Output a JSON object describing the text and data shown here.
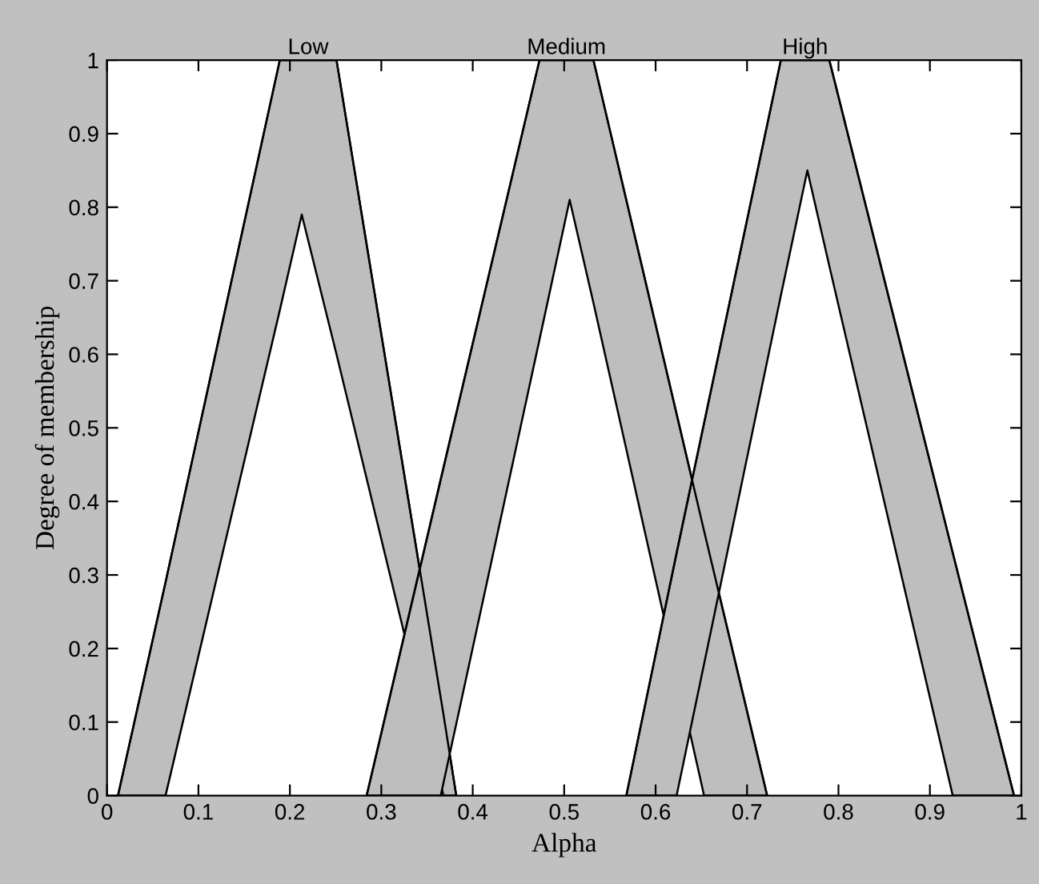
{
  "chart_data": {
    "type": "line",
    "marker": "none",
    "xlabel": "Alpha",
    "ylabel": "Degree of membership",
    "xlim": [
      0,
      1
    ],
    "ylim": [
      0,
      1
    ],
    "xticks": [
      0,
      0.1,
      0.2,
      0.3,
      0.4,
      0.5,
      0.6,
      0.7,
      0.8,
      0.9,
      1
    ],
    "yticks": [
      0,
      0.1,
      0.2,
      0.3,
      0.4,
      0.5,
      0.6,
      0.7,
      0.8,
      0.9,
      1
    ],
    "grid": false,
    "legend": false,
    "series": [
      {
        "name": "Low",
        "color": "#000000",
        "x": [
          0.012,
          0.064,
          0.189,
          0.213,
          0.251,
          0.368,
          0.382
        ],
        "values": [
          0,
          0.29,
          1,
          1,
          1,
          0.11,
          0
        ],
        "upper": [
          0,
          0.29,
          1,
          1,
          1,
          0.11,
          0
        ],
        "lower": [
          0,
          0,
          0.66,
          0.79,
          0.6,
          0,
          0
        ]
      },
      {
        "name": "Medium",
        "color": "#000000",
        "x": [
          0.284,
          0.365,
          0.473,
          0.506,
          0.532,
          0.653,
          0.722
        ],
        "values": [
          0,
          0.43,
          1,
          1,
          1,
          0.36,
          0
        ],
        "upper": [
          0,
          0.43,
          1,
          1,
          1,
          0.36,
          0
        ],
        "lower": [
          0,
          0,
          0.62,
          0.81,
          0.67,
          0,
          0
        ]
      },
      {
        "name": "High",
        "color": "#000000",
        "x": [
          0.568,
          0.623,
          0.737,
          0.766,
          0.79,
          0.925,
          0.992
        ],
        "values": [
          0,
          0.33,
          1,
          1,
          1,
          0.33,
          0
        ],
        "upper": [
          0,
          0.33,
          1,
          1,
          1,
          0.33,
          0
        ],
        "lower": [
          0,
          0,
          0.68,
          0.85,
          0.72,
          0,
          0
        ]
      }
    ]
  }
}
